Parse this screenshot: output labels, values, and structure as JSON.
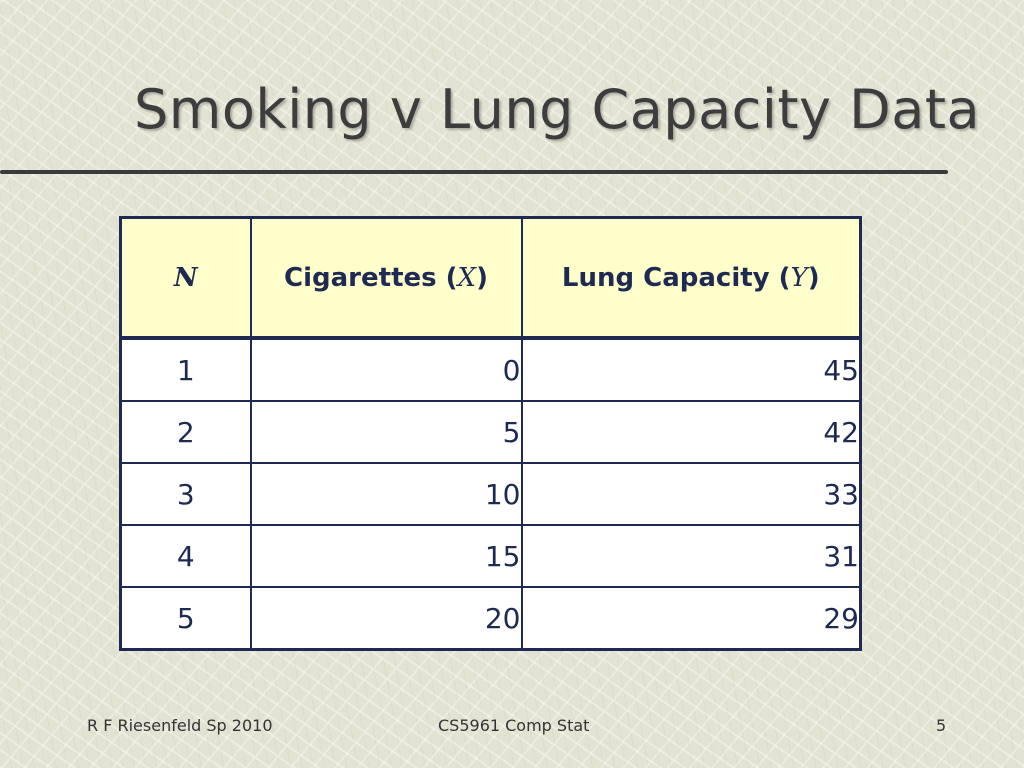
{
  "slide": {
    "title": "Smoking v Lung Capacity Data",
    "table": {
      "headers": {
        "n": "N",
        "x_label": "Cigarettes (",
        "x_var": "X",
        "x_close": ")",
        "y_label": "Lung Capacity (",
        "y_var": "Y",
        "y_close": ")"
      },
      "rows": [
        {
          "n": "1",
          "x": "0",
          "y": "45"
        },
        {
          "n": "2",
          "x": "5",
          "y": "42"
        },
        {
          "n": "3",
          "x": "10",
          "y": "33"
        },
        {
          "n": "4",
          "x": "15",
          "y": "31"
        },
        {
          "n": "5",
          "x": "20",
          "y": "29"
        }
      ]
    },
    "footer": {
      "left": "R F Riesenfeld Sp 2010",
      "center": "CS5961 Comp Stat",
      "right": "5"
    }
  },
  "colors": {
    "header_fill": "#ffffcc",
    "border": "#1e2a52",
    "title_text": "#3d3d3d"
  }
}
